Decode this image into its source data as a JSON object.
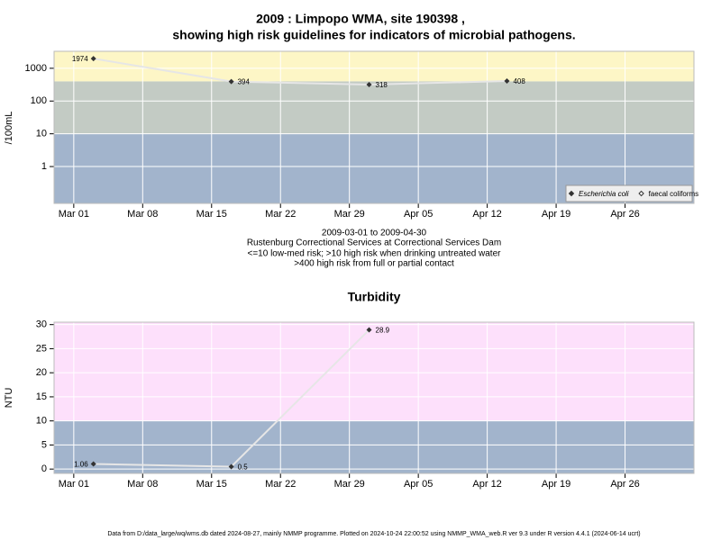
{
  "chart_data": [
    {
      "type": "line",
      "title": [
        "2009 : Limpopo WMA, site 190398 ,",
        "showing high risk guidelines for indicators of microbial pathogens."
      ],
      "notes": [
        "2009-03-01 to 2009-04-30",
        "Rustenburg Correctional Services at Correctional Services Dam",
        "<=10 low-med risk; >10 high risk when drinking untreated water",
        ">400 high risk from full or partial contact"
      ],
      "y_label": "/100mL",
      "x": [
        "Mar 03",
        "Mar 17",
        "Mar 31",
        "Apr 14"
      ],
      "series": [
        {
          "name": "Escherichia coli",
          "color": "#333333",
          "values": [
            1974,
            394,
            318,
            408
          ]
        },
        {
          "name": "faecal coliforms",
          "color": "#333333",
          "values": [
            null,
            null,
            null,
            null
          ]
        }
      ],
      "xlim": [
        "Feb 27",
        "May 03"
      ],
      "xticks": [
        "Mar 01",
        "Mar 08",
        "Mar 15",
        "Mar 22",
        "Mar 29",
        "Apr 05",
        "Apr 12",
        "Apr 19",
        "Apr 26"
      ],
      "ylim": [
        0.075,
        3300
      ],
      "yticks": [
        1,
        10,
        100,
        1000
      ],
      "log_y": true,
      "bands": [
        {
          "from": 0.075,
          "to": 10,
          "color": "#a2b4cc"
        },
        {
          "from": 10,
          "to": 400,
          "color": "#c3cbc4"
        },
        {
          "from": 400,
          "to": 3300,
          "color": "#fdf6c6"
        }
      ],
      "grid": true,
      "legend": "lower right"
    },
    {
      "type": "line",
      "title": "Turbidity",
      "y_label": "NTU",
      "x": [
        "Mar 03",
        "Mar 17",
        "Mar 31"
      ],
      "series": [
        {
          "color": "#333333",
          "values": [
            1.06,
            0.5,
            28.9
          ]
        }
      ],
      "xlim": [
        "Feb 27",
        "May 03"
      ],
      "xticks": [
        "Mar 01",
        "Mar 08",
        "Mar 15",
        "Mar 22",
        "Mar 29",
        "Apr 05",
        "Apr 12",
        "Apr 19",
        "Apr 26"
      ],
      "ylim": [
        -0.9,
        30.5
      ],
      "yticks": [
        0,
        5,
        10,
        15,
        20,
        25,
        30
      ],
      "bands": [
        {
          "from": -0.9,
          "to": 10,
          "color": "#a2b4cc"
        },
        {
          "from": 10,
          "to": 30.5,
          "color": "#fde0fb"
        }
      ],
      "grid": true
    }
  ],
  "footer": "Data from D:/data_large/wq/wms.db dated 2024-08-27, mainly NMMP programme. Plotted on 2024-10-24 22:00:52 using NMMP_WMA_web.R ver 9.3 under R version 4.4.1 (2024-06-14 ucrt)"
}
